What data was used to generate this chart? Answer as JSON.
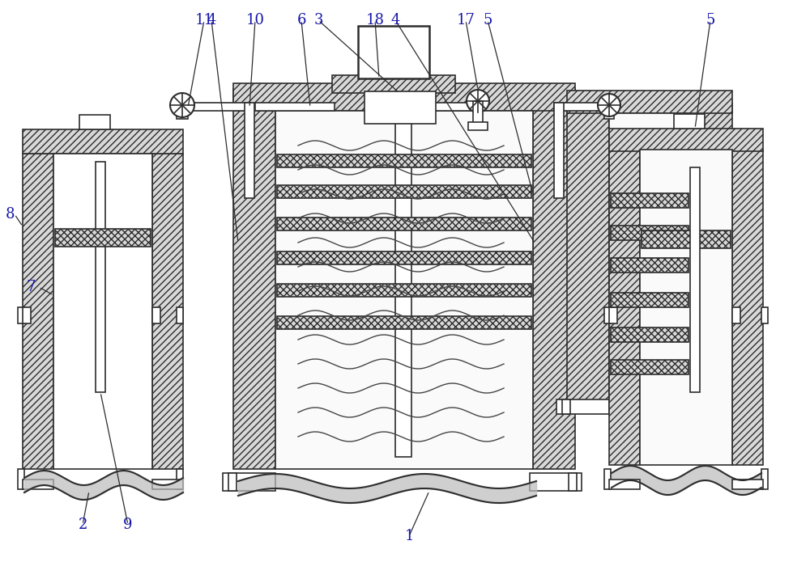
{
  "bg_color": "#ffffff",
  "lc": "#2d2d2d",
  "lc_blue": "#1a1aaa",
  "lw": 1.2,
  "lw_thick": 1.8,
  "fig_width": 10.0,
  "fig_height": 6.95
}
